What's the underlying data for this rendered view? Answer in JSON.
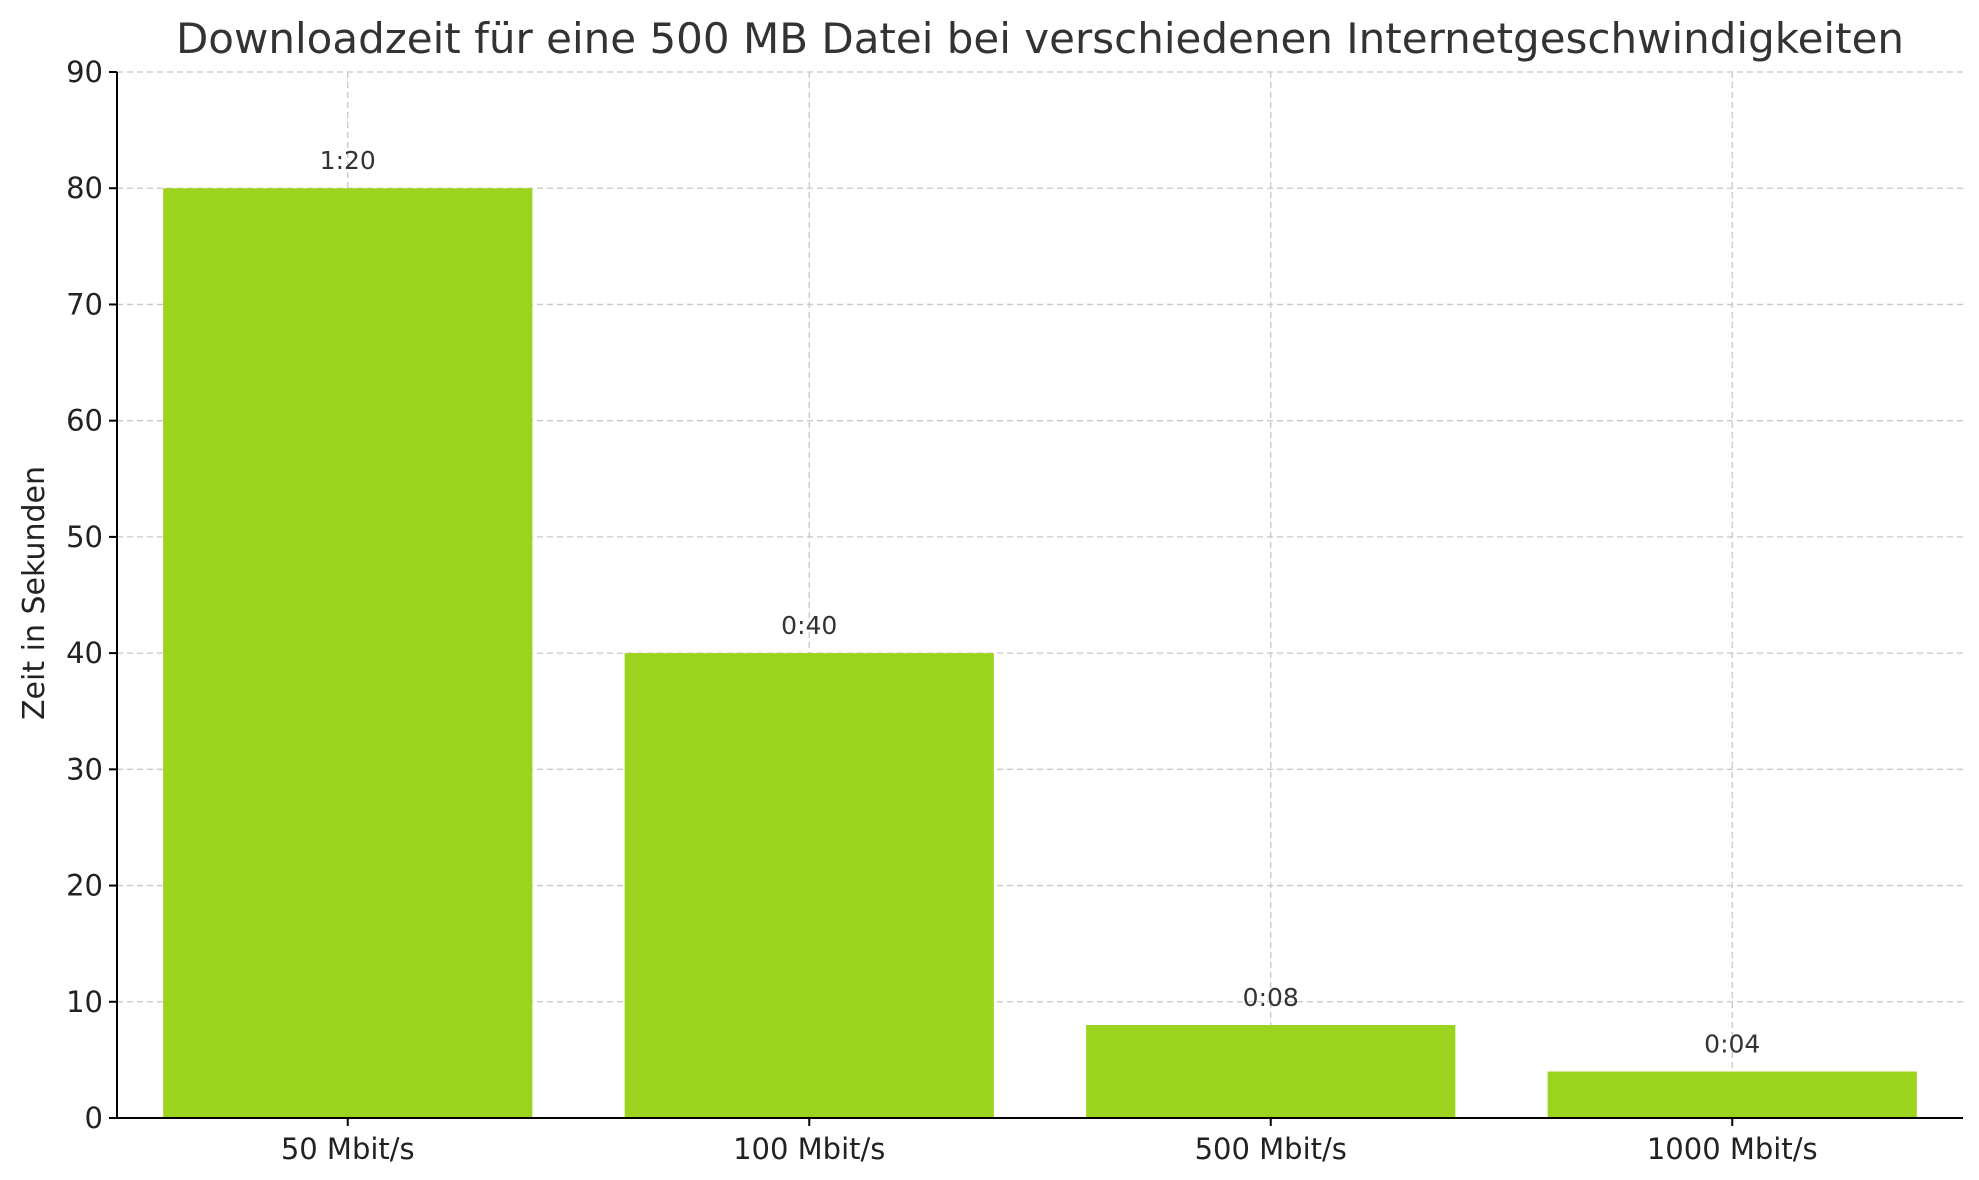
{
  "chart_data": {
    "type": "bar",
    "title": "Downloadzeit für eine 500 MB Datei bei verschiedenen Internetgeschwindigkeiten",
    "xlabel": "",
    "ylabel": "Zeit in Sekunden",
    "categories": [
      "50 Mbit/s",
      "100 Mbit/s",
      "500 Mbit/s",
      "1000 Mbit/s"
    ],
    "values": [
      80,
      40,
      8,
      4
    ],
    "data_labels": [
      "1:20",
      "0:40",
      "0:08",
      "0:04"
    ],
    "ylim": [
      0,
      90
    ],
    "yticks": [
      "0",
      "10",
      "20",
      "30",
      "40",
      "50",
      "60",
      "70",
      "80",
      "90"
    ],
    "grid": true,
    "legend": "none",
    "bar_color": "#9BD31E"
  }
}
